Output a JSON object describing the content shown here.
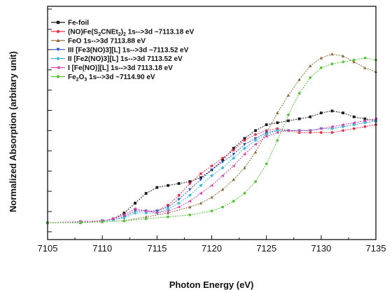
{
  "chart_data": {
    "type": "line",
    "xlabel": "Photon Energy (eV)",
    "ylabel": "Normalized Absorption (arbitary unit)",
    "xlim": [
      7105,
      7135
    ],
    "ylim": [
      0,
      1
    ],
    "x_ticks": [
      "7105",
      "7110",
      "7115",
      "7120",
      "7125",
      "7130",
      "7135"
    ],
    "grid": false,
    "legend_position": "top-left",
    "series": [
      {
        "name": "Fe-foil",
        "color": "#1a1a1a",
        "marker": "square",
        "x": [
          7105,
          7108,
          7110,
          7111,
          7112,
          7113,
          7114,
          7115,
          7116,
          7117,
          7118,
          7119,
          7120,
          7121,
          7122,
          7123,
          7124,
          7125,
          7126,
          7127,
          7128,
          7129,
          7130,
          7131,
          7132,
          7133,
          7134,
          7135
        ],
        "y": [
          0.0,
          0.005,
          0.01,
          0.02,
          0.05,
          0.1,
          0.15,
          0.18,
          0.19,
          0.2,
          0.21,
          0.23,
          0.27,
          0.32,
          0.38,
          0.43,
          0.47,
          0.5,
          0.51,
          0.52,
          0.53,
          0.54,
          0.56,
          0.57,
          0.56,
          0.54,
          0.53,
          0.52
        ]
      },
      {
        "name": "(NO)Fe(S2CNEt2)2 1s-->3d ~7113.18 eV",
        "color": "#e8304a",
        "marker": "circle",
        "x": [
          7105,
          7108,
          7110,
          7111,
          7112,
          7113,
          7114,
          7115,
          7116,
          7117,
          7118,
          7119,
          7120,
          7121,
          7122,
          7123,
          7124,
          7125,
          7126,
          7127,
          7128,
          7129,
          7130,
          7131,
          7132,
          7133,
          7134,
          7135
        ],
        "y": [
          0.0,
          0.005,
          0.01,
          0.02,
          0.04,
          0.07,
          0.06,
          0.06,
          0.09,
          0.14,
          0.2,
          0.25,
          0.29,
          0.33,
          0.37,
          0.42,
          0.45,
          0.47,
          0.48,
          0.47,
          0.46,
          0.46,
          0.46,
          0.46,
          0.47,
          0.48,
          0.49,
          0.5
        ]
      },
      {
        "name": "FeO 1s-->3d 7113.88 eV",
        "color": "#8c6a3a",
        "marker": "triangle",
        "x": [
          7105,
          7108,
          7110,
          7112,
          7114,
          7116,
          7118,
          7119,
          7120,
          7121,
          7122,
          7123,
          7124,
          7125,
          7126,
          7127,
          7128,
          7129,
          7130,
          7131,
          7132,
          7133,
          7134,
          7135
        ],
        "y": [
          0.0,
          0.0,
          0.005,
          0.01,
          0.03,
          0.05,
          0.08,
          0.1,
          0.13,
          0.17,
          0.22,
          0.28,
          0.36,
          0.46,
          0.56,
          0.65,
          0.73,
          0.8,
          0.84,
          0.86,
          0.85,
          0.82,
          0.79,
          0.77
        ]
      },
      {
        "name": "III [Fe3(NO)3][L] 1s-->3d ~7113.52 eV",
        "color": "#2f55c8",
        "marker": "triangle-down",
        "x": [
          7105,
          7108,
          7110,
          7111,
          7112,
          7113,
          7114,
          7115,
          7116,
          7117,
          7118,
          7119,
          7120,
          7121,
          7122,
          7123,
          7124,
          7125,
          7126,
          7127,
          7128,
          7129,
          7130,
          7131,
          7132,
          7133,
          7134,
          7135
        ],
        "y": [
          0.0,
          0.005,
          0.01,
          0.015,
          0.03,
          0.06,
          0.06,
          0.06,
          0.08,
          0.12,
          0.17,
          0.22,
          0.27,
          0.31,
          0.35,
          0.4,
          0.43,
          0.46,
          0.47,
          0.47,
          0.47,
          0.47,
          0.48,
          0.48,
          0.49,
          0.5,
          0.51,
          0.52
        ]
      },
      {
        "name": "II [Fe2(NO)3][L] 1s-->3d 7113.52 eV",
        "color": "#45b8d6",
        "marker": "diamond",
        "x": [
          7105,
          7108,
          7110,
          7111,
          7112,
          7113,
          7114,
          7115,
          7116,
          7117,
          7118,
          7119,
          7120,
          7121,
          7122,
          7123,
          7124,
          7125,
          7126,
          7127,
          7128,
          7129,
          7130,
          7131,
          7132,
          7133,
          7134,
          7135
        ],
        "y": [
          0.0,
          0.005,
          0.01,
          0.015,
          0.025,
          0.05,
          0.05,
          0.05,
          0.07,
          0.1,
          0.14,
          0.19,
          0.24,
          0.28,
          0.33,
          0.38,
          0.42,
          0.45,
          0.47,
          0.47,
          0.47,
          0.47,
          0.48,
          0.48,
          0.49,
          0.5,
          0.51,
          0.52
        ]
      },
      {
        "name": "I [Fe(NO)][L] 1s-->3d 7113.18 eV",
        "color": "#d640a8",
        "marker": "triangle-left",
        "x": [
          7105,
          7108,
          7110,
          7111,
          7112,
          7113,
          7114,
          7115,
          7116,
          7117,
          7118,
          7119,
          7120,
          7121,
          7122,
          7123,
          7124,
          7125,
          7126,
          7127,
          7128,
          7129,
          7130,
          7131,
          7132,
          7133,
          7134,
          7135
        ],
        "y": [
          0.0,
          0.005,
          0.01,
          0.02,
          0.04,
          0.07,
          0.06,
          0.05,
          0.06,
          0.08,
          0.11,
          0.15,
          0.19,
          0.24,
          0.29,
          0.35,
          0.4,
          0.44,
          0.46,
          0.47,
          0.47,
          0.47,
          0.48,
          0.49,
          0.5,
          0.51,
          0.52,
          0.53
        ]
      },
      {
        "name": "Fe2O3 1s-->3d ~7114.90 eV",
        "color": "#55c43a",
        "marker": "circle",
        "x": [
          7105,
          7108,
          7110,
          7112,
          7114,
          7116,
          7118,
          7120,
          7121,
          7122,
          7123,
          7124,
          7125,
          7126,
          7127,
          7128,
          7129,
          7130,
          7131,
          7132,
          7133,
          7134,
          7135
        ],
        "y": [
          0.0,
          0.0,
          0.005,
          0.01,
          0.02,
          0.03,
          0.04,
          0.06,
          0.08,
          0.11,
          0.15,
          0.21,
          0.3,
          0.42,
          0.55,
          0.66,
          0.74,
          0.79,
          0.81,
          0.82,
          0.83,
          0.84,
          0.83
        ]
      }
    ]
  },
  "legend": {
    "items": [
      {
        "id": "fefoil",
        "label": "Fe-foil"
      },
      {
        "id": "nofe",
        "pre": "(NO)Fe(S",
        "sub1": "2",
        "mid": "CNEt",
        "sub2": "2",
        "mid2": ")",
        "sub3": "2",
        "post": " 1s-->3d ~7113.18 eV"
      },
      {
        "id": "feo",
        "label": "FeO  1s-->3d 7113.88 eV"
      },
      {
        "id": "iii",
        "label": "III  [Fe3(NO)3][L]  1s-->3d ~7113.52 eV"
      },
      {
        "id": "ii",
        "label": "II  [Fe2(NO)3][L]  1s-->3d 7113.52 eV"
      },
      {
        "id": "i",
        "label": "I   [Fe(NO)][L]   1s-->3d 7113.18 eV"
      },
      {
        "id": "fe2o3",
        "pre": "Fe",
        "sub1": "2",
        "mid": "O",
        "sub2": "3",
        "post": " 1s-->3d ~7114.90 eV"
      }
    ]
  }
}
